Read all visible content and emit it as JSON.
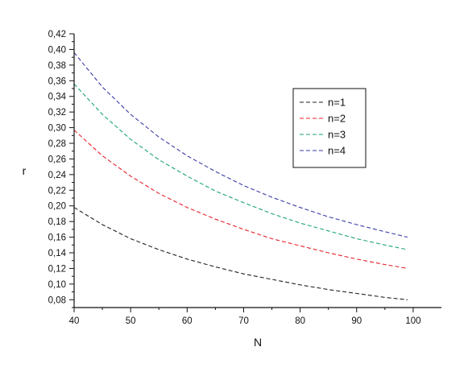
{
  "chart_data": {
    "type": "line",
    "xlabel": "N",
    "ylabel": "r",
    "xlim": [
      40,
      105
    ],
    "ylim": [
      0.07,
      0.42
    ],
    "x_ticks": [
      40,
      50,
      60,
      70,
      80,
      90,
      100
    ],
    "x_tick_labels": [
      "40",
      "50",
      "60",
      "70",
      "80",
      "90",
      "100"
    ],
    "y_ticks": [
      0.08,
      0.1,
      0.12,
      0.14,
      0.16,
      0.18,
      0.2,
      0.22,
      0.24,
      0.26,
      0.28,
      0.3,
      0.32,
      0.34,
      0.36,
      0.38,
      0.4,
      0.42
    ],
    "y_tick_labels": [
      "0,08",
      "0,10",
      "0,12",
      "0,14",
      "0,16",
      "0,18",
      "0,20",
      "0,22",
      "0,24",
      "0,26",
      "0,28",
      "0,30",
      "0,32",
      "0,34",
      "0,36",
      "0,38",
      "0,40",
      "0,42"
    ],
    "x": [
      40,
      45,
      50,
      55,
      60,
      65,
      70,
      75,
      80,
      85,
      90,
      95,
      99
    ],
    "series": [
      {
        "name": "n=1",
        "color": "#222222",
        "values": [
          0.198,
          0.176,
          0.158,
          0.144,
          0.132,
          0.122,
          0.113,
          0.106,
          0.099,
          0.093,
          0.088,
          0.083,
          0.08
        ]
      },
      {
        "name": "n=2",
        "color": "#e8202a",
        "values": [
          0.297,
          0.264,
          0.238,
          0.216,
          0.198,
          0.183,
          0.17,
          0.158,
          0.149,
          0.14,
          0.132,
          0.125,
          0.12
        ]
      },
      {
        "name": "n=3",
        "color": "#1aa37a",
        "values": [
          0.356,
          0.317,
          0.285,
          0.259,
          0.238,
          0.219,
          0.204,
          0.19,
          0.178,
          0.168,
          0.158,
          0.15,
          0.144
        ]
      },
      {
        "name": "n=4",
        "color": "#3a3aa8",
        "values": [
          0.396,
          0.352,
          0.317,
          0.288,
          0.264,
          0.244,
          0.226,
          0.211,
          0.198,
          0.186,
          0.176,
          0.167,
          0.16
        ]
      }
    ],
    "legend_position": "top-right",
    "grid": false
  }
}
